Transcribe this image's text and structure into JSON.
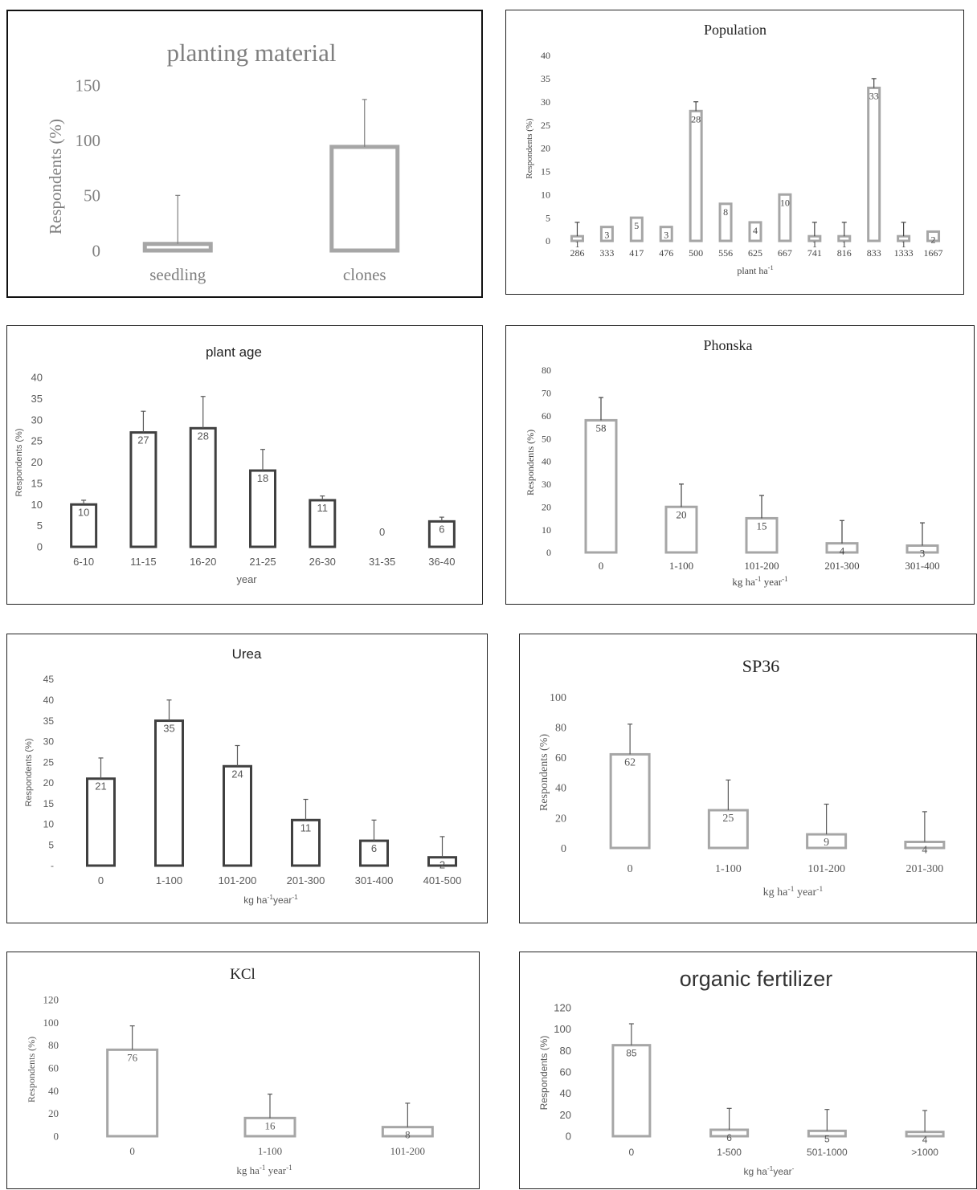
{
  "chart_data": [
    {
      "key": "planting",
      "type": "bar",
      "title": "planting material",
      "xlabel": "",
      "ylabel": "Respondents (%)",
      "ylim": [
        0,
        150
      ],
      "yticks": [
        "0",
        "50",
        "100",
        "150"
      ],
      "categories": [
        "seedling",
        "clones"
      ],
      "values": [
        6,
        94
      ],
      "errors": [
        44,
        43
      ],
      "data_labels": [],
      "colors": {
        "bar": "#a6a6a6",
        "text": "#7f7f7f",
        "title": "#7f7f7f"
      }
    },
    {
      "key": "population",
      "type": "bar",
      "title": "Population",
      "xlabel": "plant ha",
      "xlabel_sup": "-1",
      "ylabel": "Respondents (%)",
      "ylim": [
        0,
        40
      ],
      "yticks": [
        "0",
        "5",
        "10",
        "15",
        "20",
        "25",
        "30",
        "35",
        "40"
      ],
      "categories": [
        "286",
        "333",
        "417",
        "476",
        "500",
        "556",
        "625",
        "667",
        "741",
        "816",
        "833",
        "1333",
        "1667"
      ],
      "values": [
        1,
        3,
        5,
        3,
        28,
        8,
        4,
        10,
        1,
        1,
        33,
        1,
        2
      ],
      "errors": [
        3,
        0,
        0,
        0,
        2,
        0,
        0,
        0,
        3,
        3,
        2,
        3,
        0
      ],
      "data_labels": [
        "1",
        "3",
        "5",
        "3",
        "28",
        "8",
        "4",
        "10",
        "1",
        "1",
        "33",
        "1",
        "2"
      ],
      "colors": {
        "bar": "#a6a6a6",
        "text": "#444444",
        "title": "#222222"
      }
    },
    {
      "key": "plantage",
      "type": "bar",
      "title": "plant age",
      "xlabel": "year",
      "ylabel": "Respondents (%)",
      "ylim": [
        0,
        40
      ],
      "yticks": [
        "0",
        "5",
        "10",
        "15",
        "20",
        "25",
        "30",
        "35",
        "40"
      ],
      "categories": [
        "6-10",
        "11-15",
        "16-20",
        "21-25",
        "26-30",
        "31-35",
        "36-40"
      ],
      "values": [
        10,
        27,
        28,
        18,
        11,
        0,
        6
      ],
      "errors": [
        1,
        5,
        7.5,
        5,
        1,
        0,
        1
      ],
      "data_labels": [
        "10",
        "27",
        "28",
        "18",
        "11",
        "0",
        "6"
      ],
      "colors": {
        "bar": "#404040",
        "text": "#595959",
        "title": "#222222"
      }
    },
    {
      "key": "phonska",
      "type": "bar",
      "title": "Phonska",
      "xlabel": "kg ha",
      "xlabel_sup": "-1",
      "xlabel_tail": " year",
      "xlabel_tail_sup": "-1",
      "ylabel": "Respondents (%)",
      "ylim": [
        0,
        80
      ],
      "yticks": [
        "0",
        "10",
        "20",
        "30",
        "40",
        "50",
        "60",
        "70",
        "80"
      ],
      "categories": [
        "0",
        "1-100",
        "101-200",
        "201-300",
        "301-400"
      ],
      "values": [
        58,
        20,
        15,
        4,
        3
      ],
      "errors": [
        10,
        10,
        10,
        10,
        10
      ],
      "data_labels": [
        "58",
        "20",
        "15",
        "4",
        "3"
      ],
      "colors": {
        "bar": "#a6a6a6",
        "text": "#444444",
        "title": "#222222"
      }
    },
    {
      "key": "urea",
      "type": "bar",
      "title": "Urea",
      "xlabel": "kg ha",
      "xlabel_sup": "-1",
      "xlabel_tail": "year",
      "xlabel_tail_sup": "-1",
      "ylabel": "Respondents (%)",
      "ylim": [
        0,
        45
      ],
      "yticks": [
        "-",
        "5",
        "10",
        "15",
        "20",
        "25",
        "30",
        "35",
        "40",
        "45"
      ],
      "categories": [
        "0",
        "1-100",
        "101-200",
        "201-300",
        "301-400",
        "401-500"
      ],
      "values": [
        21,
        35,
        24,
        11,
        6,
        2
      ],
      "errors": [
        5,
        5,
        5,
        5,
        5,
        5
      ],
      "data_labels": [
        "21",
        "35",
        "24",
        "11",
        "6",
        "2"
      ],
      "colors": {
        "bar": "#404040",
        "text": "#595959",
        "title": "#222222"
      }
    },
    {
      "key": "sp36",
      "type": "bar",
      "title": "SP36",
      "xlabel": "kg ha",
      "xlabel_sup": "-1",
      "xlabel_tail": " year",
      "xlabel_tail_sup": "-1",
      "ylabel": "Respondents (%)",
      "ylim": [
        0,
        100
      ],
      "yticks": [
        "0",
        "20",
        "40",
        "60",
        "80",
        "100"
      ],
      "categories": [
        "0",
        "1-100",
        "101-200",
        "201-300"
      ],
      "values": [
        62,
        25,
        9,
        4
      ],
      "errors": [
        20,
        20,
        20,
        20
      ],
      "data_labels": [
        "62",
        "25",
        "9",
        "4"
      ],
      "colors": {
        "bar": "#a6a6a6",
        "text": "#595959",
        "title": "#222222"
      }
    },
    {
      "key": "kcl",
      "type": "bar",
      "title": "KCl",
      "xlabel": "kg ha",
      "xlabel_sup": "-1",
      "xlabel_tail": " year",
      "xlabel_tail_sup": "-1",
      "ylabel": "Respondents (%)",
      "ylim": [
        0,
        120
      ],
      "yticks": [
        "0",
        "20",
        "40",
        "60",
        "80",
        "100",
        "120"
      ],
      "categories": [
        "0",
        "1-100",
        "101-200"
      ],
      "values": [
        76,
        16,
        8
      ],
      "errors": [
        21,
        21,
        21
      ],
      "data_labels": [
        "76",
        "16",
        "8"
      ],
      "colors": {
        "bar": "#a6a6a6",
        "text": "#595959",
        "title": "#222222"
      }
    },
    {
      "key": "organic",
      "type": "bar",
      "title": "organic fertilizer",
      "xlabel": "kg ha",
      "xlabel_sup": "-1",
      "xlabel_tail": "year",
      "xlabel_tail_sup": "-",
      "ylabel": "Respondents (%)",
      "ylim": [
        0,
        120
      ],
      "yticks": [
        "0",
        "20",
        "40",
        "60",
        "80",
        "100",
        "120"
      ],
      "categories": [
        "0",
        "1-500",
        "501-1000",
        ">1000"
      ],
      "values": [
        85,
        6,
        5,
        4
      ],
      "errors": [
        20,
        20,
        20,
        20
      ],
      "data_labels": [
        "85",
        "6",
        "5",
        "4"
      ],
      "colors": {
        "bar": "#a6a6a6",
        "text": "#595959",
        "title": "#333333"
      }
    }
  ]
}
